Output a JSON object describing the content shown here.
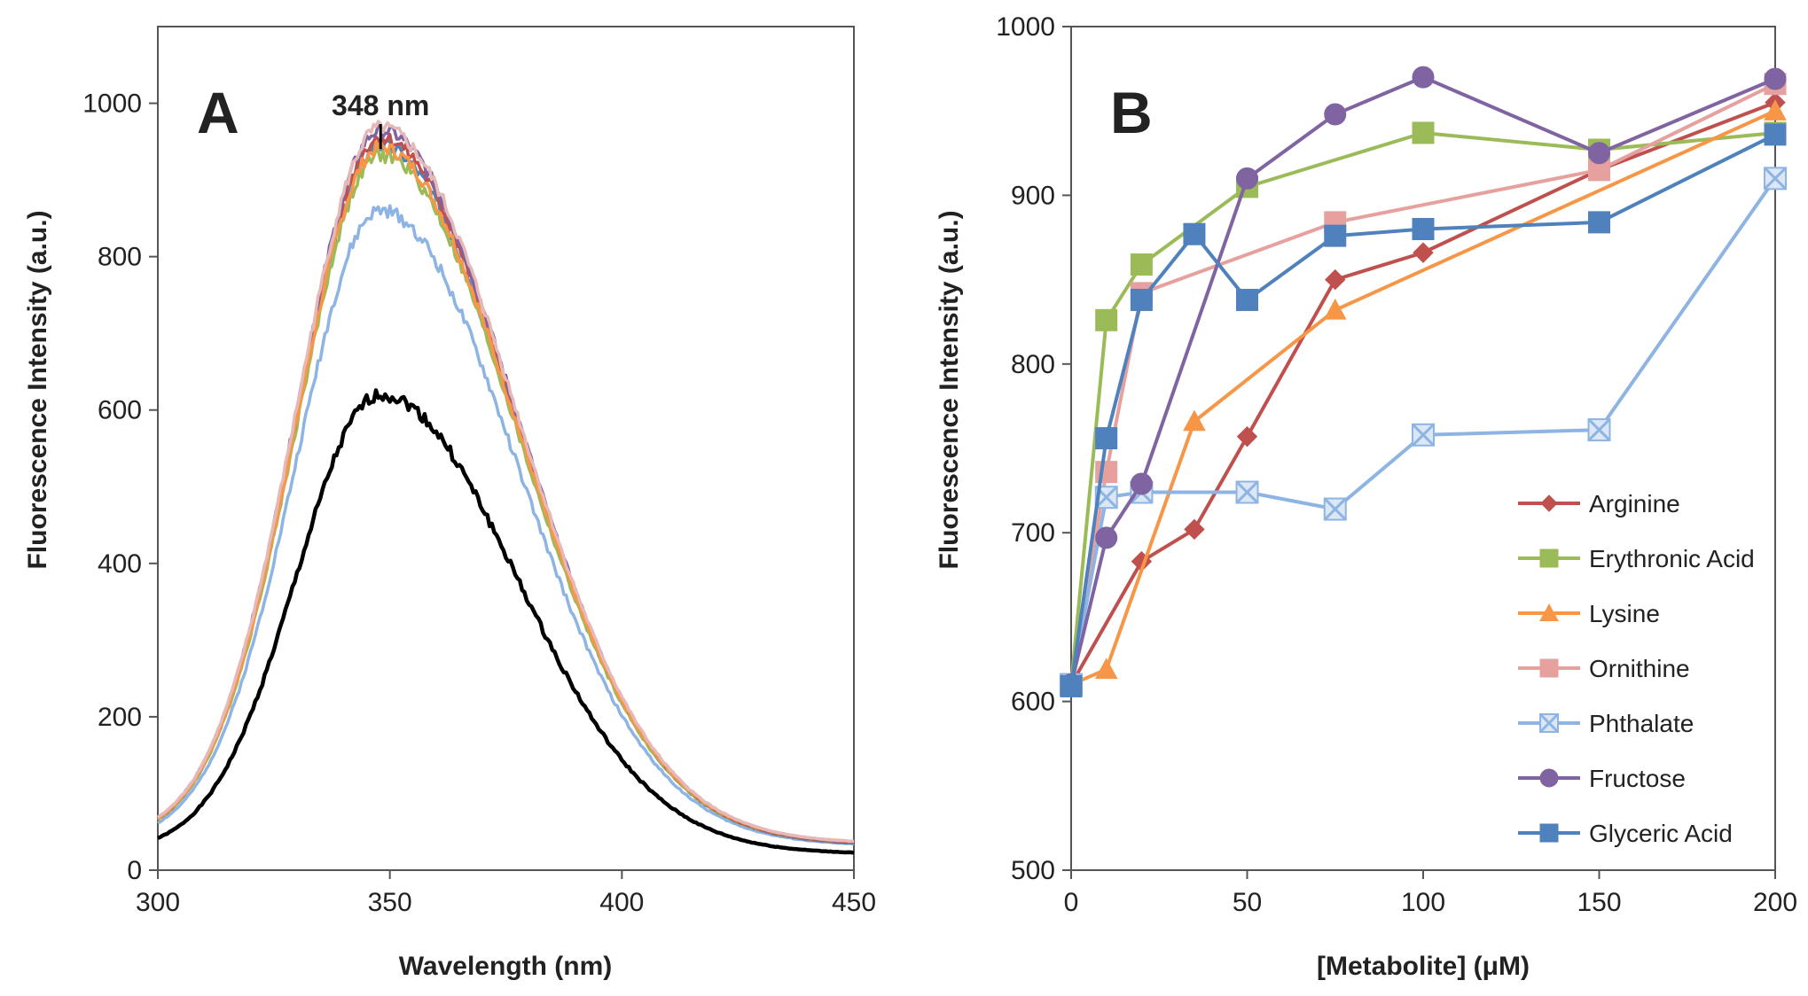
{
  "chart_data": [
    {
      "type": "line",
      "panel_label": "A",
      "xlabel": "Wavelength (nm)",
      "ylabel": "Fluorescence Intensity (a.u.)",
      "xlim": [
        300,
        450
      ],
      "ylim": [
        0,
        1100
      ],
      "xticks": [
        300,
        350,
        400,
        450
      ],
      "yticks": [
        0,
        200,
        400,
        600,
        800,
        1000
      ],
      "annotation": {
        "text": "348 nm",
        "x": 348
      },
      "grid": false,
      "legend": false,
      "series": [
        {
          "color": "#000000",
          "lineWidth": 4.5,
          "peak": 620,
          "baseline": 28,
          "right": 28,
          "noise": 8,
          "seed": 1
        },
        {
          "color": "#8db4e2",
          "lineWidth": 3.5,
          "peak": 860,
          "baseline": 43,
          "right": 42,
          "noise": 9,
          "seed": 2
        },
        {
          "color": "#4f81bd",
          "lineWidth": 3.5,
          "peak": 945,
          "baseline": 45,
          "right": 43,
          "noise": 9,
          "seed": 3
        },
        {
          "color": "#9bbb59",
          "lineWidth": 3.5,
          "peak": 932,
          "baseline": 46,
          "right": 44,
          "noise": 9,
          "seed": 4
        },
        {
          "color": "#c0504d",
          "lineWidth": 3.5,
          "peak": 955,
          "baseline": 46,
          "right": 44,
          "noise": 9,
          "seed": 5
        },
        {
          "color": "#8064a2",
          "lineWidth": 3.5,
          "peak": 965,
          "baseline": 47,
          "right": 45,
          "noise": 9,
          "seed": 6
        },
        {
          "color": "#f79646",
          "lineWidth": 3.5,
          "peak": 942,
          "baseline": 47,
          "right": 46,
          "noise": 9,
          "seed": 7
        },
        {
          "color": "#e6b9b8",
          "lineWidth": 3.5,
          "peak": 968,
          "baseline": 48,
          "right": 46,
          "noise": 9,
          "seed": 8
        }
      ]
    },
    {
      "type": "line",
      "panel_label": "B",
      "xlabel": "[Metabolite] (μM)",
      "ylabel": "Fluorescence Intensity (a.u.)",
      "xlim": [
        0,
        200
      ],
      "ylim": [
        500,
        1000
      ],
      "xticks": [
        0,
        50,
        100,
        150,
        200
      ],
      "yticks": [
        500,
        600,
        700,
        800,
        900,
        1000
      ],
      "grid": false,
      "legend_position": "bottom-right",
      "series": [
        {
          "name": "Arginine",
          "color": "#c0504d",
          "marker": "diamond",
          "x": [
            0,
            20,
            35,
            50,
            75,
            100,
            150,
            200
          ],
          "y": [
            610,
            683,
            702,
            757,
            850,
            866,
            915,
            955
          ]
        },
        {
          "name": "Erythronic Acid",
          "color": "#9bbb59",
          "marker": "square",
          "x": [
            0,
            10,
            20,
            50,
            100,
            150,
            200
          ],
          "y": [
            610,
            826,
            859,
            905,
            937,
            927,
            937
          ]
        },
        {
          "name": "Lysine",
          "color": "#f79646",
          "marker": "triangle",
          "x": [
            0,
            10,
            35,
            75,
            200
          ],
          "y": [
            610,
            619,
            766,
            832,
            950
          ]
        },
        {
          "name": "Ornithine",
          "color": "#e6a09e",
          "marker": "square",
          "x": [
            0,
            10,
            20,
            75,
            150,
            200
          ],
          "y": [
            610,
            736,
            842,
            884,
            915,
            966
          ]
        },
        {
          "name": "Phthalate",
          "color": "#8db4e2",
          "marker": "x-square",
          "x": [
            0,
            10,
            20,
            50,
            75,
            100,
            150,
            200
          ],
          "y": [
            610,
            721,
            724,
            724,
            714,
            758,
            761,
            910
          ]
        },
        {
          "name": "Fructose",
          "color": "#8064a2",
          "marker": "circle",
          "x": [
            0,
            10,
            20,
            50,
            75,
            100,
            150,
            200
          ],
          "y": [
            610,
            697,
            729,
            910,
            948,
            970,
            925,
            969
          ]
        },
        {
          "name": "Glyceric Acid",
          "color": "#4f81bd",
          "marker": "square",
          "x": [
            0,
            10,
            20,
            35,
            50,
            75,
            100,
            150,
            200
          ],
          "y": [
            609,
            756,
            838,
            877,
            838,
            876,
            880,
            884,
            936
          ]
        }
      ]
    }
  ]
}
